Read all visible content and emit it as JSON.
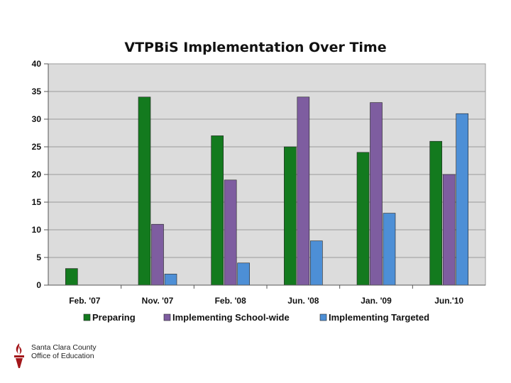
{
  "chart_data": {
    "type": "bar",
    "title": "VTPBiS Implementation Over Time",
    "categories": [
      "Feb. '07",
      "Nov. '07",
      "Feb. '08",
      "Jun. '08",
      "Jan. '09",
      "Jun.'10"
    ],
    "series": [
      {
        "name": "Preparing",
        "color": "#137a1e",
        "values": [
          3,
          34,
          27,
          25,
          24,
          26
        ]
      },
      {
        "name": "Implementing School-wide",
        "color": "#7e5da0",
        "values": [
          null,
          11,
          19,
          34,
          33,
          20
        ]
      },
      {
        "name": "Implementing Targeted",
        "color": "#4d8fd6",
        "values": [
          null,
          2,
          4,
          8,
          13,
          31
        ]
      }
    ],
    "ylim": [
      0,
      40
    ],
    "yticks": [
      0,
      5,
      10,
      15,
      20,
      25,
      30,
      35,
      40
    ],
    "grid": true,
    "legend_position": "bottom",
    "xlabel": "",
    "ylabel": ""
  },
  "footer": {
    "logo_line1": "Santa Clara County",
    "logo_line2": "Office of Education",
    "logo_icon": "torch-flame-icon"
  }
}
